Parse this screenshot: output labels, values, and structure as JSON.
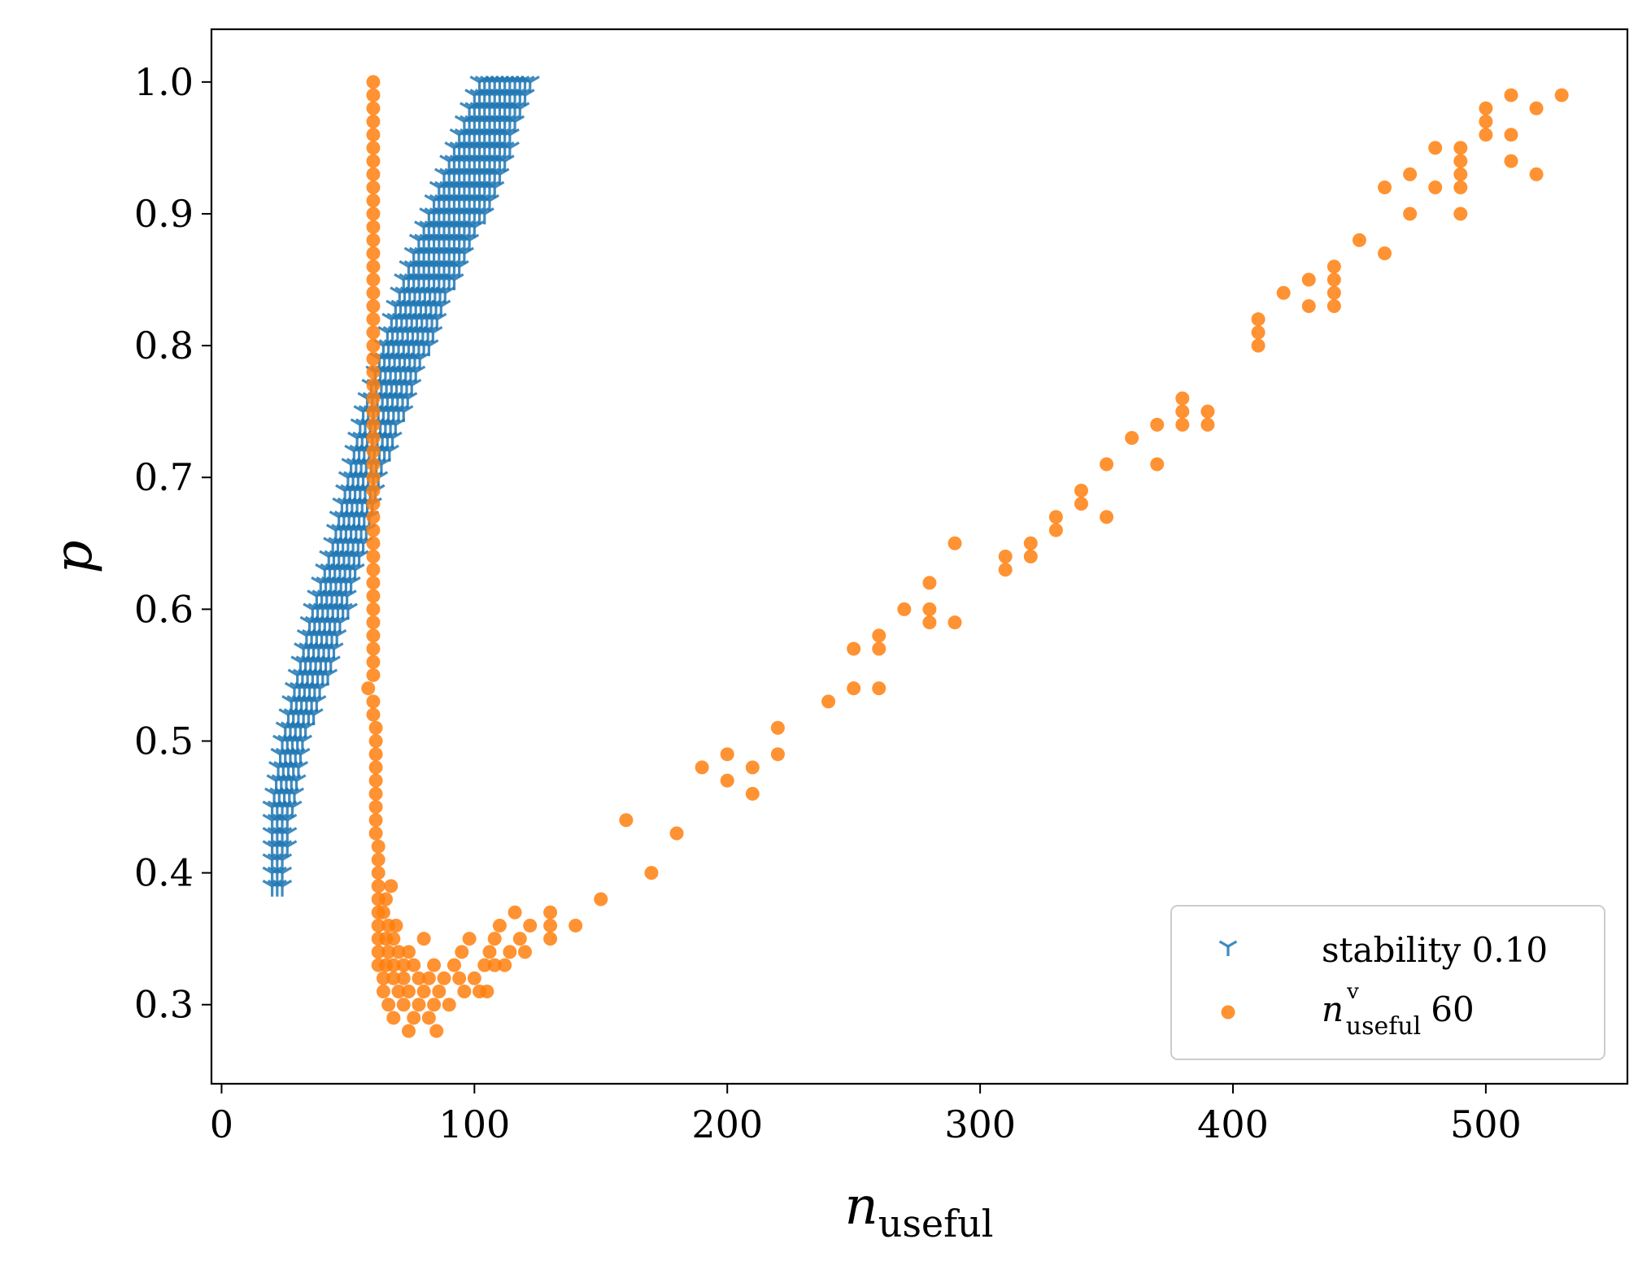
{
  "chart_data": {
    "type": "scatter",
    "title": "",
    "xlabel": "n",
    "xlabel_subscript": "useful",
    "ylabel": "p",
    "xlim": [
      -4,
      556
    ],
    "ylim": [
      0.24,
      1.04
    ],
    "xticks": [
      0,
      100,
      200,
      300,
      400,
      500
    ],
    "xtick_labels": [
      "0",
      "100",
      "200",
      "300",
      "400",
      "500"
    ],
    "yticks": [
      0.3,
      0.4,
      0.5,
      0.6,
      0.7,
      0.8,
      0.9,
      1.0
    ],
    "ytick_labels": [
      "0.3",
      "0.4",
      "0.5",
      "0.6",
      "0.7",
      "0.8",
      "0.9",
      "1.0"
    ],
    "grid": false,
    "legend_position": "lower-right",
    "series": [
      {
        "name": "stability 0.10",
        "legend_label": "stability 0.10",
        "marker": "tri_down",
        "color": "#1f77b4",
        "band": [
          {
            "p": 0.39,
            "x_min": 20,
            "x_max": 24
          },
          {
            "p": 0.45,
            "x_min": 20,
            "x_max": 28
          },
          {
            "p": 0.5,
            "x_min": 24,
            "x_max": 33
          },
          {
            "p": 0.55,
            "x_min": 30,
            "x_max": 42
          },
          {
            "p": 0.6,
            "x_min": 36,
            "x_max": 50
          },
          {
            "p": 0.65,
            "x_min": 44,
            "x_max": 57
          },
          {
            "p": 0.7,
            "x_min": 50,
            "x_max": 63
          },
          {
            "p": 0.75,
            "x_min": 56,
            "x_max": 72
          },
          {
            "p": 0.8,
            "x_min": 64,
            "x_max": 82
          },
          {
            "p": 0.85,
            "x_min": 72,
            "x_max": 92
          },
          {
            "p": 0.9,
            "x_min": 82,
            "x_max": 104
          },
          {
            "p": 0.95,
            "x_min": 92,
            "x_max": 114
          },
          {
            "p": 1.0,
            "x_min": 102,
            "x_max": 122
          }
        ]
      },
      {
        "name": "n^v_useful 60",
        "legend_label_main": "n",
        "legend_label_sup": "v",
        "legend_label_sub": "useful",
        "legend_label_value": "60",
        "marker": "circle",
        "color": "#ff7f0e",
        "points": [
          [
            60,
            1.0
          ],
          [
            60,
            0.99
          ],
          [
            60,
            0.98
          ],
          [
            60,
            0.97
          ],
          [
            60,
            0.96
          ],
          [
            60,
            0.95
          ],
          [
            60,
            0.94
          ],
          [
            60,
            0.93
          ],
          [
            60,
            0.92
          ],
          [
            60,
            0.91
          ],
          [
            60,
            0.9
          ],
          [
            60,
            0.89
          ],
          [
            60,
            0.88
          ],
          [
            60,
            0.87
          ],
          [
            60,
            0.86
          ],
          [
            60,
            0.85
          ],
          [
            60,
            0.84
          ],
          [
            60,
            0.83
          ],
          [
            60,
            0.82
          ],
          [
            60,
            0.81
          ],
          [
            60,
            0.8
          ],
          [
            60,
            0.79
          ],
          [
            60,
            0.78
          ],
          [
            60,
            0.77
          ],
          [
            60,
            0.76
          ],
          [
            60,
            0.75
          ],
          [
            60,
            0.74
          ],
          [
            60,
            0.73
          ],
          [
            60,
            0.72
          ],
          [
            60,
            0.71
          ],
          [
            60,
            0.7
          ],
          [
            60,
            0.69
          ],
          [
            60,
            0.68
          ],
          [
            60,
            0.67
          ],
          [
            60,
            0.66
          ],
          [
            60,
            0.65
          ],
          [
            60,
            0.64
          ],
          [
            60,
            0.63
          ],
          [
            60,
            0.62
          ],
          [
            60,
            0.61
          ],
          [
            60,
            0.6
          ],
          [
            60,
            0.59
          ],
          [
            60,
            0.58
          ],
          [
            60,
            0.57
          ],
          [
            60,
            0.56
          ],
          [
            60,
            0.55
          ],
          [
            58,
            0.54
          ],
          [
            60,
            0.53
          ],
          [
            60,
            0.52
          ],
          [
            61,
            0.51
          ],
          [
            61,
            0.5
          ],
          [
            61,
            0.49
          ],
          [
            61,
            0.48
          ],
          [
            61,
            0.47
          ],
          [
            61,
            0.46
          ],
          [
            61,
            0.45
          ],
          [
            61,
            0.44
          ],
          [
            61,
            0.43
          ],
          [
            62,
            0.42
          ],
          [
            62,
            0.41
          ],
          [
            62,
            0.4
          ],
          [
            62,
            0.39
          ],
          [
            67,
            0.39
          ],
          [
            62,
            0.38
          ],
          [
            65,
            0.38
          ],
          [
            62,
            0.37
          ],
          [
            64,
            0.37
          ],
          [
            62,
            0.36
          ],
          [
            66,
            0.36
          ],
          [
            69,
            0.36
          ],
          [
            62,
            0.35
          ],
          [
            65,
            0.35
          ],
          [
            68,
            0.35
          ],
          [
            80,
            0.35
          ],
          [
            62,
            0.34
          ],
          [
            66,
            0.34
          ],
          [
            70,
            0.34
          ],
          [
            74,
            0.34
          ],
          [
            62,
            0.33
          ],
          [
            65,
            0.33
          ],
          [
            68,
            0.33
          ],
          [
            72,
            0.33
          ],
          [
            76,
            0.33
          ],
          [
            84,
            0.33
          ],
          [
            64,
            0.32
          ],
          [
            68,
            0.32
          ],
          [
            72,
            0.32
          ],
          [
            78,
            0.32
          ],
          [
            82,
            0.32
          ],
          [
            88,
            0.32
          ],
          [
            64,
            0.31
          ],
          [
            70,
            0.31
          ],
          [
            74,
            0.31
          ],
          [
            80,
            0.31
          ],
          [
            86,
            0.31
          ],
          [
            66,
            0.3
          ],
          [
            72,
            0.3
          ],
          [
            78,
            0.3
          ],
          [
            84,
            0.3
          ],
          [
            90,
            0.3
          ],
          [
            68,
            0.29
          ],
          [
            76,
            0.29
          ],
          [
            82,
            0.29
          ],
          [
            74,
            0.28
          ],
          [
            85,
            0.28
          ],
          [
            92,
            0.33
          ],
          [
            95,
            0.34
          ],
          [
            98,
            0.35
          ],
          [
            100,
            0.32
          ],
          [
            102,
            0.31
          ],
          [
            104,
            0.33
          ],
          [
            106,
            0.34
          ],
          [
            108,
            0.35
          ],
          [
            110,
            0.36
          ],
          [
            112,
            0.33
          ],
          [
            114,
            0.34
          ],
          [
            116,
            0.37
          ],
          [
            118,
            0.35
          ],
          [
            120,
            0.34
          ],
          [
            122,
            0.36
          ],
          [
            96,
            0.31
          ],
          [
            105,
            0.31
          ],
          [
            94,
            0.32
          ],
          [
            108,
            0.33
          ],
          [
            130,
            0.37
          ],
          [
            130,
            0.36
          ],
          [
            130,
            0.35
          ],
          [
            140,
            0.36
          ],
          [
            150,
            0.38
          ],
          [
            160,
            0.44
          ],
          [
            170,
            0.4
          ],
          [
            180,
            0.43
          ],
          [
            190,
            0.48
          ],
          [
            200,
            0.49
          ],
          [
            200,
            0.47
          ],
          [
            210,
            0.48
          ],
          [
            210,
            0.46
          ],
          [
            220,
            0.51
          ],
          [
            220,
            0.49
          ],
          [
            240,
            0.53
          ],
          [
            250,
            0.57
          ],
          [
            250,
            0.54
          ],
          [
            260,
            0.58
          ],
          [
            260,
            0.57
          ],
          [
            260,
            0.54
          ],
          [
            270,
            0.6
          ],
          [
            280,
            0.62
          ],
          [
            280,
            0.6
          ],
          [
            280,
            0.59
          ],
          [
            290,
            0.65
          ],
          [
            290,
            0.59
          ],
          [
            310,
            0.64
          ],
          [
            310,
            0.63
          ],
          [
            320,
            0.65
          ],
          [
            320,
            0.64
          ],
          [
            330,
            0.67
          ],
          [
            330,
            0.66
          ],
          [
            340,
            0.69
          ],
          [
            340,
            0.68
          ],
          [
            350,
            0.71
          ],
          [
            350,
            0.67
          ],
          [
            360,
            0.73
          ],
          [
            370,
            0.74
          ],
          [
            370,
            0.71
          ],
          [
            380,
            0.76
          ],
          [
            380,
            0.75
          ],
          [
            380,
            0.74
          ],
          [
            390,
            0.75
          ],
          [
            390,
            0.74
          ],
          [
            410,
            0.82
          ],
          [
            410,
            0.81
          ],
          [
            410,
            0.8
          ],
          [
            420,
            0.84
          ],
          [
            430,
            0.85
          ],
          [
            430,
            0.83
          ],
          [
            440,
            0.86
          ],
          [
            440,
            0.85
          ],
          [
            440,
            0.84
          ],
          [
            440,
            0.83
          ],
          [
            450,
            0.88
          ],
          [
            460,
            0.92
          ],
          [
            460,
            0.87
          ],
          [
            470,
            0.93
          ],
          [
            470,
            0.9
          ],
          [
            480,
            0.95
          ],
          [
            480,
            0.92
          ],
          [
            490,
            0.95
          ],
          [
            490,
            0.94
          ],
          [
            490,
            0.93
          ],
          [
            490,
            0.92
          ],
          [
            490,
            0.9
          ],
          [
            500,
            0.98
          ],
          [
            500,
            0.97
          ],
          [
            500,
            0.96
          ],
          [
            510,
            0.99
          ],
          [
            510,
            0.96
          ],
          [
            510,
            0.94
          ],
          [
            520,
            0.98
          ],
          [
            520,
            0.93
          ],
          [
            530,
            0.99
          ]
        ]
      }
    ]
  }
}
